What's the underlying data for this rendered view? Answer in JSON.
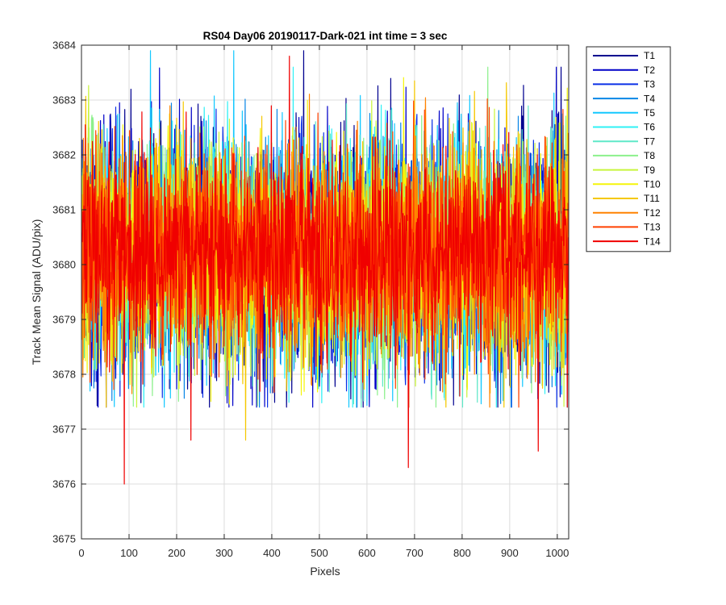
{
  "chart_data": {
    "type": "line",
    "title": "RS04 Day06 20190117-Dark-021 int time = 3 sec",
    "xlabel": "Pixels",
    "ylabel": "Track Mean Signal (ADU/pix)",
    "xlim": [
      0,
      1024
    ],
    "ylim": [
      3675,
      3684
    ],
    "xticks": [
      0,
      100,
      200,
      300,
      400,
      500,
      600,
      700,
      800,
      900,
      1000
    ],
    "yticks": [
      3675,
      3676,
      3677,
      3678,
      3679,
      3680,
      3681,
      3682,
      3683,
      3684
    ],
    "grid": true,
    "legend_position": "outside-right-top",
    "x": {
      "start": 1,
      "end": 1024,
      "step": 1,
      "count": 1024
    },
    "series": [
      {
        "name": "T1",
        "color": "#00008f",
        "mean": 3680.2,
        "sd": 1.1,
        "seed": 11,
        "draw_order": 1
      },
      {
        "name": "T2",
        "color": "#0000c8",
        "mean": 3680.2,
        "sd": 1.1,
        "seed": 23,
        "draw_order": 2
      },
      {
        "name": "T3",
        "color": "#0a30e6",
        "mean": 3680.2,
        "sd": 1.1,
        "seed": 37,
        "draw_order": 3
      },
      {
        "name": "T4",
        "color": "#0a86e6",
        "mean": 3680.2,
        "sd": 1.05,
        "seed": 41,
        "draw_order": 4
      },
      {
        "name": "T5",
        "color": "#14c8ff",
        "mean": 3680.2,
        "sd": 1.05,
        "seed": 53,
        "draw_order": 5
      },
      {
        "name": "T6",
        "color": "#2ff0f5",
        "mean": 3680.2,
        "sd": 1.0,
        "seed": 67,
        "draw_order": 6
      },
      {
        "name": "T7",
        "color": "#5fe8c8",
        "mean": 3680.2,
        "sd": 1.0,
        "seed": 71,
        "draw_order": 7
      },
      {
        "name": "T8",
        "color": "#8cf08c",
        "mean": 3680.2,
        "sd": 1.0,
        "seed": 83,
        "draw_order": 8
      },
      {
        "name": "T9",
        "color": "#c8f53c",
        "mean": 3680.2,
        "sd": 1.0,
        "seed": 97,
        "draw_order": 9
      },
      {
        "name": "T10",
        "color": "#f5f50a",
        "mean": 3680.2,
        "sd": 1.0,
        "seed": 101,
        "draw_order": 10
      },
      {
        "name": "T11",
        "color": "#f5c800",
        "mean": 3680.2,
        "sd": 1.0,
        "seed": 113,
        "draw_order": 11
      },
      {
        "name": "T12",
        "color": "#ff8200",
        "mean": 3680.2,
        "sd": 0.95,
        "seed": 127,
        "draw_order": 12
      },
      {
        "name": "T13",
        "color": "#ff4100",
        "mean": 3680.2,
        "sd": 0.95,
        "seed": 131,
        "draw_order": 13
      },
      {
        "name": "T14",
        "color": "#f00000",
        "mean": 3680.2,
        "sd": 0.9,
        "seed": 149,
        "draw_order": 14
      }
    ],
    "notable_points": [
      {
        "series": "T14",
        "x": 90,
        "y": 3676.0
      },
      {
        "series": "T14",
        "x": 230,
        "y": 3676.8
      },
      {
        "series": "T11",
        "x": 345,
        "y": 3676.8
      },
      {
        "series": "T14",
        "x": 687,
        "y": 3676.3
      },
      {
        "series": "T14",
        "x": 960,
        "y": 3676.6
      },
      {
        "series": "T14",
        "x": 437,
        "y": 3683.8
      },
      {
        "series": "T1",
        "x": 467,
        "y": 3683.9
      },
      {
        "series": "T5",
        "x": 145,
        "y": 3683.9
      },
      {
        "series": "T5",
        "x": 320,
        "y": 3683.9
      }
    ]
  }
}
